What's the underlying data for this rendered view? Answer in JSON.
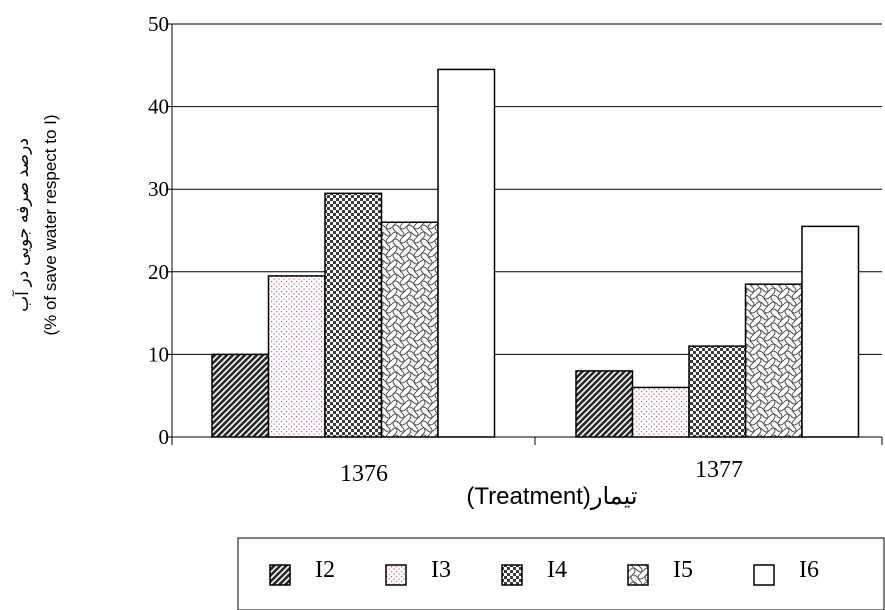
{
  "chart_data": {
    "type": "bar",
    "categories": [
      "1376",
      "1377"
    ],
    "series": [
      {
        "name": "I2",
        "values": [
          10,
          8
        ]
      },
      {
        "name": "I3",
        "values": [
          19.5,
          6
        ]
      },
      {
        "name": "I4",
        "values": [
          29.5,
          11
        ]
      },
      {
        "name": "I5",
        "values": [
          26,
          18.5
        ]
      },
      {
        "name": "I6",
        "values": [
          44.5,
          25.5
        ]
      }
    ],
    "xlabel": "تیمار(Treatment)",
    "ylabel_lines": [
      "درصد صرفه جویی در آب",
      "(% of save water respect to I)"
    ],
    "ylim": [
      0,
      50
    ],
    "yticks": [
      0,
      10,
      20,
      30,
      40,
      50
    ],
    "grid": "horizontal",
    "legend_position": "bottom",
    "colors": {
      "I2": "#3a3a3a",
      "I3": "#c0608a",
      "I4": "#505050",
      "I5": "#707070",
      "I6": "#ffffff",
      "axis": "#000000",
      "grid": "#000000"
    }
  }
}
